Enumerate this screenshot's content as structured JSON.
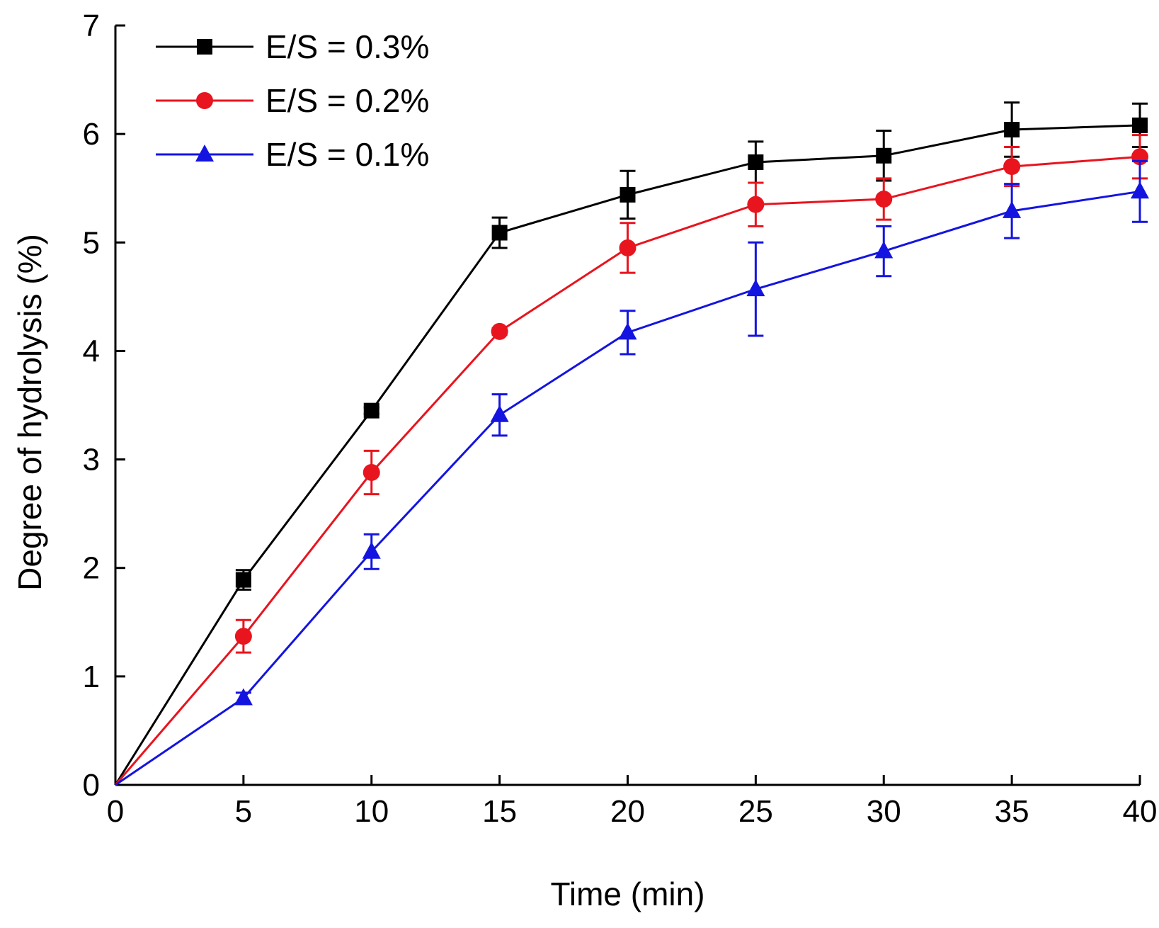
{
  "chart_data": {
    "type": "line",
    "title": "",
    "xlabel": "Time (min)",
    "ylabel": "Degree of hydrolysis (%)",
    "xlim": [
      0,
      40
    ],
    "ylim": [
      0,
      7
    ],
    "grid": false,
    "legend_position": "top-left",
    "x": [
      0,
      5,
      10,
      15,
      20,
      25,
      30,
      35,
      40
    ],
    "x_ticks": [
      0,
      5,
      10,
      15,
      20,
      25,
      30,
      35,
      40
    ],
    "x_tick_labels": [
      "0",
      "5",
      "10",
      "15",
      "20",
      "25",
      "30",
      "35",
      "40"
    ],
    "y_ticks": [
      0,
      1,
      2,
      3,
      4,
      5,
      6,
      7
    ],
    "y_tick_labels": [
      "0",
      "1",
      "2",
      "3",
      "4",
      "5",
      "6",
      "7"
    ],
    "series": [
      {
        "name": "E/S = 0.3%",
        "color": "#000000",
        "marker": "square",
        "values": [
          0,
          1.89,
          3.45,
          5.09,
          5.44,
          5.74,
          5.8,
          6.04,
          6.08
        ],
        "errors": [
          0,
          0.09,
          0.03,
          0.14,
          0.22,
          0.19,
          0.23,
          0.25,
          0.2
        ]
      },
      {
        "name": "E/S = 0.2%",
        "color": "#e8141e",
        "marker": "circle",
        "values": [
          0,
          1.37,
          2.88,
          4.18,
          4.95,
          5.35,
          5.4,
          5.7,
          5.79
        ],
        "errors": [
          0,
          0.15,
          0.2,
          0.03,
          0.23,
          0.2,
          0.19,
          0.18,
          0.2
        ]
      },
      {
        "name": "E/S = 0.1%",
        "color": "#1414e0",
        "marker": "triangle",
        "values": [
          0,
          0.8,
          2.15,
          3.41,
          4.17,
          4.57,
          4.92,
          5.29,
          5.47
        ],
        "errors": [
          0,
          0.05,
          0.16,
          0.19,
          0.2,
          0.43,
          0.23,
          0.25,
          0.28
        ]
      }
    ]
  }
}
